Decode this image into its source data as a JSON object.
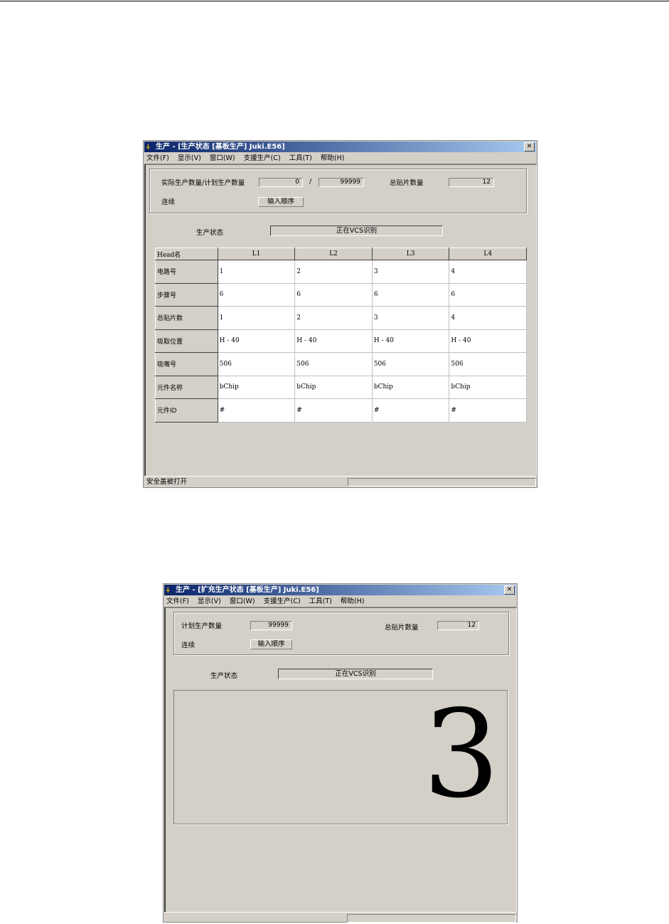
{
  "window1": {
    "title": "生产 - [生产状态 [基板生产] Juki.E56]",
    "menu": [
      "文件(F)",
      "显示(V)",
      "窗口(W)",
      "支援生产(C)",
      "工具(T)",
      "帮助(H)"
    ],
    "qty_label": "实际生产数量/计划生产数量",
    "actual_qty": "0",
    "separator": "/",
    "planned_qty": "99999",
    "total_label": "总贴片数量",
    "total_value": "12",
    "mode_label": "连续",
    "input_order_button": "输入顺序",
    "status_label": "生产状态",
    "status_value": "正在VCS识别",
    "table": {
      "headers": [
        "Head名",
        "L1",
        "L2",
        "L3",
        "L4"
      ],
      "rows": [
        {
          "label": "电路号",
          "cells": [
            "1",
            "2",
            "3",
            "4"
          ]
        },
        {
          "label": "步骤号",
          "cells": [
            "6",
            "6",
            "6",
            "6"
          ]
        },
        {
          "label": "总贴片数",
          "cells": [
            "1",
            "2",
            "3",
            "4"
          ]
        },
        {
          "label": "吸取位置",
          "cells": [
            "H - 40",
            "H - 40",
            "H - 40",
            "H - 40"
          ]
        },
        {
          "label": "吸嘴号",
          "cells": [
            "506",
            "506",
            "506",
            "506"
          ]
        },
        {
          "label": "元件名称",
          "cells": [
            "bChip",
            "bChip",
            "bChip",
            "bChip"
          ]
        },
        {
          "label": "元件ID",
          "cells": [
            "#",
            "#",
            "#",
            "#"
          ]
        }
      ]
    },
    "statusbar": "安全盖被打开"
  },
  "window2": {
    "title": "生产 - [扩充生产状态 [基板生产] Juki.E56]",
    "menu": [
      "文件(F)",
      "显示(V)",
      "窗口(W)",
      "支援生产(C)",
      "工具(T)",
      "帮助(H)"
    ],
    "planned_label": "计划生产数量",
    "planned_qty": "99999",
    "total_label": "总贴片数量",
    "total_value": "12",
    "mode_label": "连续",
    "input_order_button": "输入顺序",
    "status_label": "生产状态",
    "status_value": "正在VCS识别",
    "big_number": "3"
  }
}
